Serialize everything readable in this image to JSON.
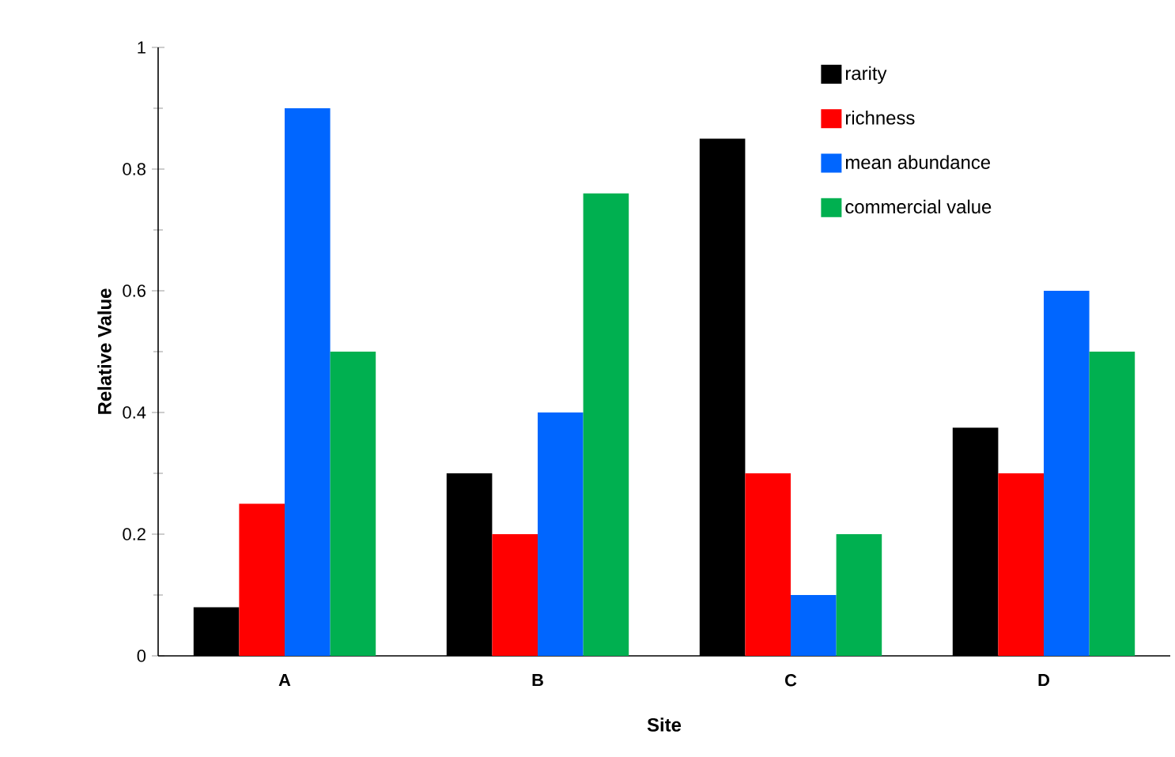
{
  "chart_data": {
    "type": "bar",
    "xlabel": "Site",
    "ylabel": "Relative Value",
    "categories": [
      "A",
      "B",
      "C",
      "D"
    ],
    "series": [
      {
        "name": "rarity",
        "color": "#000000",
        "values": [
          0.08,
          0.3,
          0.85,
          0.375
        ]
      },
      {
        "name": "richness",
        "color": "#ff0000",
        "values": [
          0.25,
          0.2,
          0.3,
          0.3
        ]
      },
      {
        "name": "mean abundance",
        "color": "#0066ff",
        "values": [
          0.9,
          0.4,
          0.1,
          0.6
        ]
      },
      {
        "name": "commercial value",
        "color": "#00b050",
        "values": [
          0.5,
          0.76,
          0.2,
          0.5
        ]
      }
    ],
    "ylim": [
      0,
      1
    ],
    "yticks": [
      0,
      0.2,
      0.4,
      0.6,
      0.8,
      1
    ],
    "grid": false,
    "legend": "top right"
  }
}
